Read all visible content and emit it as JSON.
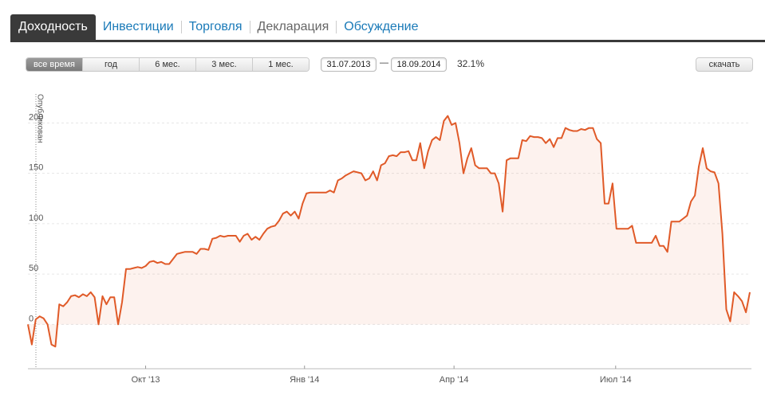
{
  "tabs": [
    "Доходность",
    "Инвестиции",
    "Торговля",
    "Декларация",
    "Обсуждение"
  ],
  "period_buttons": [
    "все время",
    "год",
    "6 мес.",
    "3 мес.",
    "1 мес."
  ],
  "date_from": "31.07.2013",
  "date_separator": "—",
  "date_to": "18.09.2014",
  "return": "32.1%",
  "download": "скачать",
  "chart_data": {
    "type": "line",
    "annotation": "Опубликован",
    "color": "#e05a28",
    "grid": true,
    "values": [
      0,
      -20,
      5,
      8,
      6,
      0,
      -20,
      -22,
      20,
      18,
      22,
      28,
      29,
      27,
      30,
      28,
      32,
      27,
      0,
      28,
      20,
      27,
      27,
      0,
      22,
      55,
      55,
      56,
      57,
      56,
      58,
      62,
      63,
      61,
      62,
      60,
      60,
      65,
      70,
      71,
      72,
      72,
      72,
      70,
      75,
      75,
      74,
      85,
      86,
      88,
      87,
      88,
      88,
      88,
      82,
      88,
      90,
      84,
      87,
      84,
      90,
      95,
      97,
      98,
      103,
      110,
      112,
      108,
      112,
      105,
      120,
      130,
      131,
      131,
      131,
      131,
      131,
      133,
      131,
      143,
      145,
      148,
      150,
      152,
      151,
      150,
      143,
      145,
      152,
      143,
      158,
      160,
      167,
      168,
      167,
      171,
      171,
      172,
      163,
      163,
      180,
      155,
      172,
      183,
      186,
      183,
      202,
      207,
      198,
      200,
      180,
      150,
      165,
      175,
      158,
      155,
      155,
      155,
      150,
      150,
      140,
      112,
      163,
      165,
      165,
      165,
      183,
      182,
      187,
      186,
      186,
      185,
      180,
      184,
      176,
      185,
      185,
      195,
      193,
      192,
      192,
      194,
      193,
      195,
      195,
      184,
      180,
      120,
      120,
      140,
      95,
      95,
      95,
      95,
      98,
      81,
      81,
      81,
      81,
      81,
      88,
      78,
      78,
      72,
      102,
      102,
      102,
      105,
      108,
      122,
      128,
      157,
      175,
      155,
      152,
      151,
      140,
      90,
      15,
      3,
      32,
      28,
      23,
      12,
      32
    ],
    "xlim": [
      0,
      184
    ],
    "xticks": [
      {
        "value": 30,
        "label": "Окт '13"
      },
      {
        "value": 70.5,
        "label": "Янв '14"
      },
      {
        "value": 108.6,
        "label": "Апр '14"
      },
      {
        "value": 149.8,
        "label": "Июл '14"
      }
    ],
    "ylim": [
      -44,
      243
    ],
    "yticks": [
      0,
      50,
      100,
      150,
      200
    ]
  }
}
